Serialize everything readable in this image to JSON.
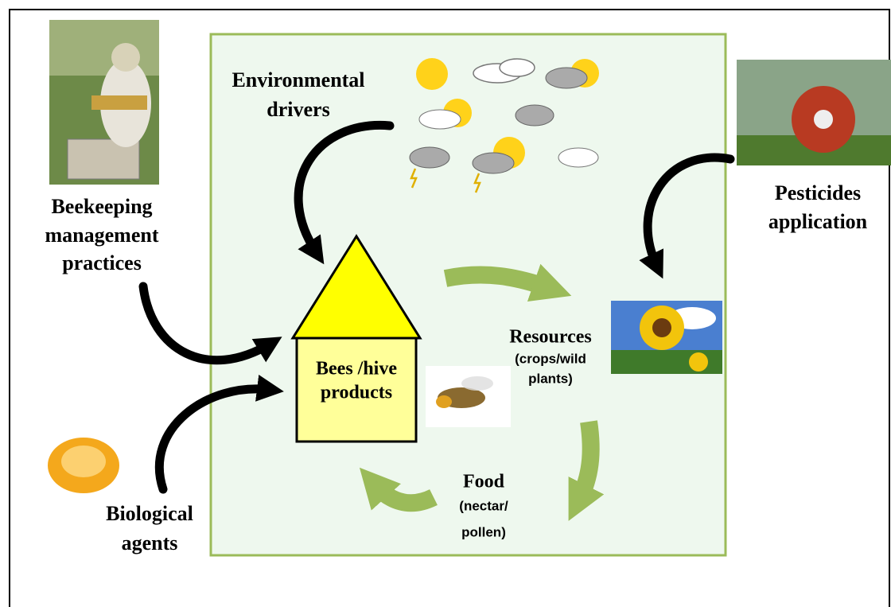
{
  "environmental": {
    "lines": [
      "Environmental",
      "drivers"
    ]
  },
  "beekeeping": {
    "lines": [
      "Beekeeping",
      "management",
      "practices"
    ]
  },
  "pesticides": {
    "lines": [
      "Pesticides",
      "application"
    ]
  },
  "hive": {
    "lines": [
      "Bees /hive",
      "products"
    ]
  },
  "resources": {
    "title": "Resources",
    "lines": [
      "(crops/wild",
      "plants)"
    ]
  },
  "food": {
    "title": "Food",
    "lines": [
      "(nectar/",
      "pollen)"
    ]
  },
  "biological": {
    "lines": [
      "Biological",
      "agents"
    ]
  }
}
